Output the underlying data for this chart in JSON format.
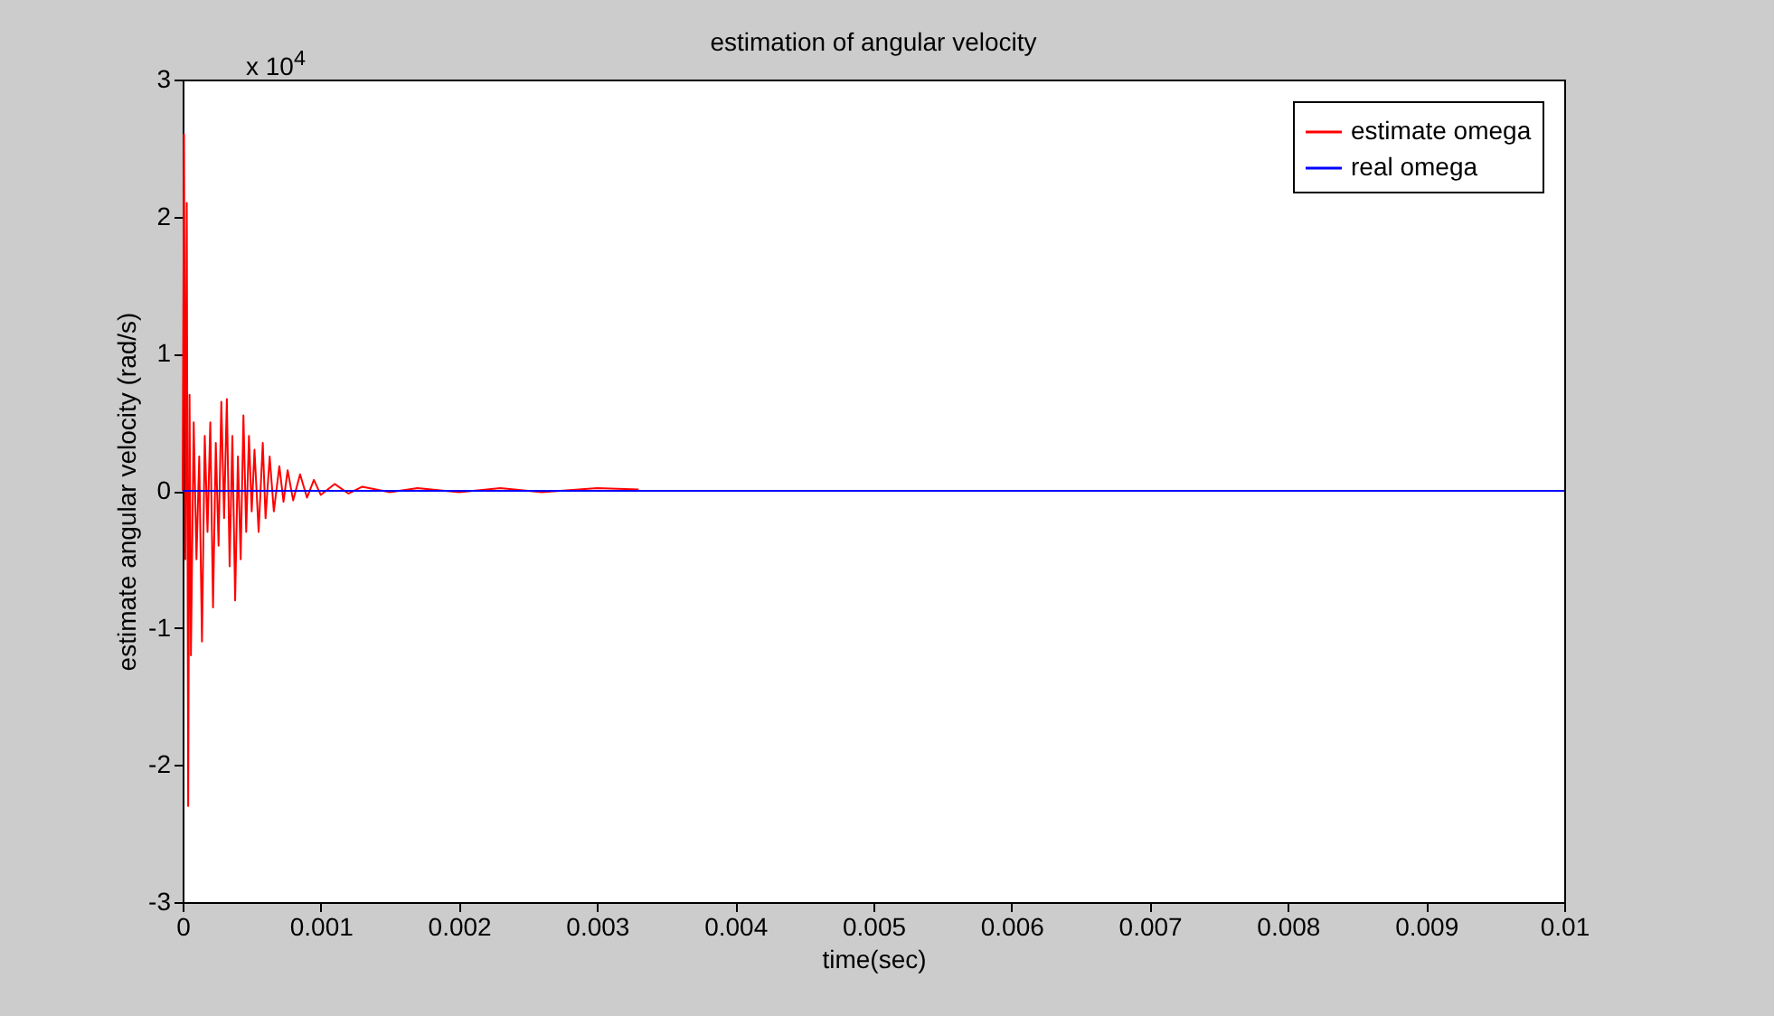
{
  "chart_data": {
    "type": "line",
    "title": "estimation of angular velocity",
    "xlabel": "time(sec)",
    "ylabel": "estimate angular velocity (rad/s)",
    "annotations": [
      "x 10$^{4}$"
    ],
    "xlim": [
      0,
      0.01
    ],
    "xticks": [
      0,
      0.001,
      0.002,
      0.003,
      0.004,
      0.005,
      0.006,
      0.007,
      0.008,
      0.009,
      0.01
    ],
    "ylim": [
      -3,
      3
    ],
    "yticks": [
      -3,
      -2,
      -1,
      0,
      1,
      2,
      3
    ],
    "legend": "top right",
    "series": [
      {
        "name": "estimate omega",
        "color": "#ff0000",
        "x": [
          0,
          1e-05,
          2e-05,
          3e-05,
          4e-05,
          5e-05,
          6e-05,
          8e-05,
          0.0001,
          0.00012,
          0.00014,
          0.00016,
          0.00018,
          0.0002,
          0.00022,
          0.00024,
          0.00026,
          0.00028,
          0.0003,
          0.00032,
          0.00034,
          0.00036,
          0.00038,
          0.0004,
          0.00042,
          0.00044,
          0.00046,
          0.00048,
          0.0005,
          0.00052,
          0.00055,
          0.00058,
          0.0006,
          0.00063,
          0.00066,
          0.0007,
          0.00073,
          0.00076,
          0.0008,
          0.00085,
          0.0009,
          0.00095,
          0.001,
          0.0011,
          0.0012,
          0.0013,
          0.0015,
          0.0017,
          0.002,
          0.0023,
          0.0026,
          0.003,
          0.0033
        ],
        "values": [
          0,
          2.6,
          -0.5,
          2.1,
          -2.3,
          0.7,
          -1.2,
          0.5,
          -0.5,
          0.25,
          -1.1,
          0.4,
          -0.3,
          0.5,
          -0.85,
          0.35,
          -0.4,
          0.65,
          -0.2,
          0.67,
          -0.55,
          0.4,
          -0.8,
          0.25,
          -0.5,
          0.55,
          -0.3,
          0.4,
          -0.15,
          0.3,
          -0.3,
          0.35,
          -0.2,
          0.25,
          -0.15,
          0.18,
          -0.08,
          0.15,
          -0.07,
          0.12,
          -0.05,
          0.08,
          -0.03,
          0.05,
          -0.02,
          0.03,
          -0.01,
          0.02,
          -0.01,
          0.02,
          -0.01,
          0.02,
          0.01
        ]
      },
      {
        "name": "real omega",
        "color": "#0000ff",
        "x": [
          0,
          0.01
        ],
        "values": [
          0,
          0
        ]
      }
    ]
  }
}
